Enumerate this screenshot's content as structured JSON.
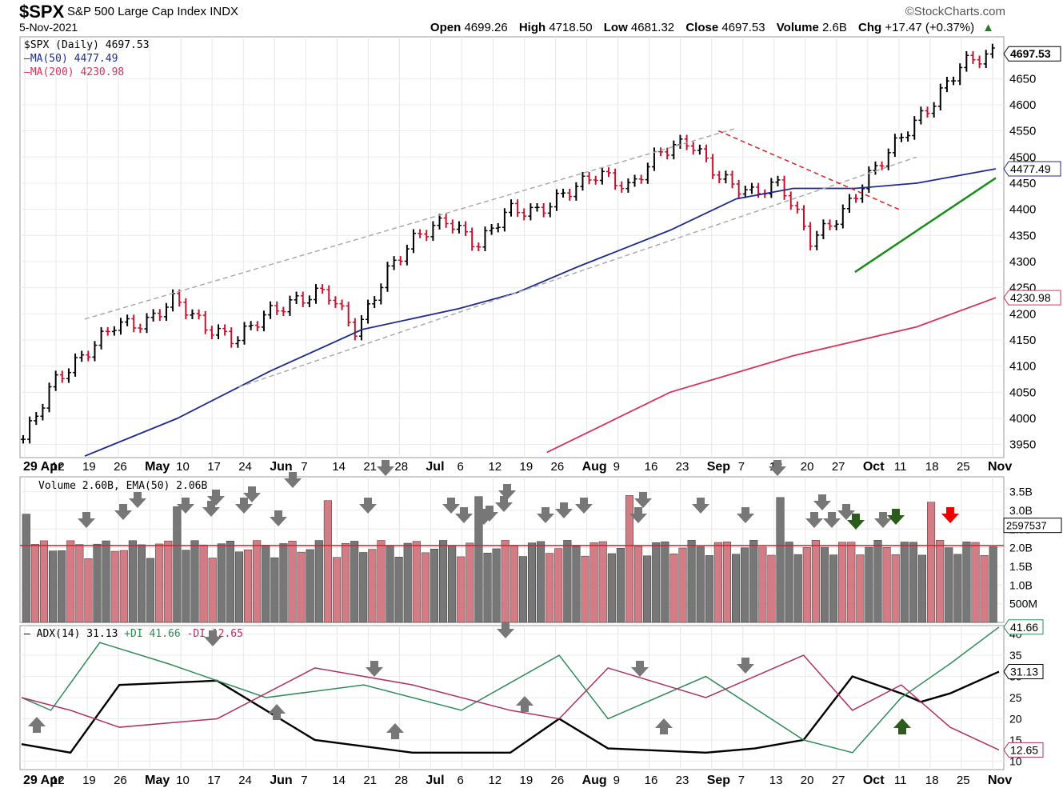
{
  "header": {
    "symbol": "$SPX",
    "name": "S&P 500 Large Cap Index",
    "exchange": "INDX",
    "date": "5-Nov-2021",
    "source": "©StockCharts.com",
    "open_label": "Open",
    "open": "4699.26",
    "high_label": "High",
    "high": "4718.50",
    "low_label": "Low",
    "low": "4681.32",
    "close_label": "Close",
    "close": "4697.53",
    "volume_label": "Volume",
    "volume": "2.6B",
    "chg_label": "Chg",
    "chg": "+17.47 (+0.37%)"
  },
  "colors": {
    "up": "#000000",
    "down": "#c8102e",
    "ma50": "#1f2a8f",
    "ma200": "#d6335a",
    "adx": "#000000",
    "plus_di": "#2e8b57",
    "minus_di": "#b03060",
    "vol_up": "#777777",
    "vol_down": "#d47c85",
    "green_line": "#1a8c1a"
  },
  "legend": {
    "price": "$SPX (Daily) 4697.53",
    "ma50": "MA(50) 4477.49",
    "ma200": "MA(200) 4230.98",
    "volume": "Volume 2.60B, EMA(50) 2.06B",
    "adx": "ADX(14) 31.13",
    "plus_di": "+DI 41.66",
    "minus_di": "-DI 12.65"
  },
  "price_tags": {
    "last": "4697.53",
    "ma50": "4477.49",
    "ma200": "4230.98"
  },
  "volume_tag": "2597537",
  "adx_tags": {
    "plus_di": "41.66",
    "adx": "31.13",
    "minus_di": "12.65"
  },
  "x_labels": [
    "29 Apr",
    "12",
    "19",
    "26",
    "May",
    "10",
    "17",
    "24",
    "Jun",
    "7",
    "14",
    "21",
    "28",
    "Jul",
    "6",
    "12",
    "19",
    "26",
    "Aug",
    "9",
    "16",
    "23",
    "Sep",
    "7",
    "13",
    "20",
    "27",
    "Oct",
    "11",
    "18",
    "25",
    "Nov"
  ],
  "chart_data": [
    {
      "type": "ohlc",
      "title": "$SPX (Daily)",
      "y_ticks": [
        3950,
        4000,
        4050,
        4100,
        4150,
        4200,
        4250,
        4300,
        4350,
        4400,
        4450,
        4500,
        4550,
        4600,
        4650
      ],
      "ylim": [
        3925,
        4730
      ],
      "series": [
        {
          "name": "$SPX (Daily)",
          "x": [
            "2021-03-29",
            "2021-04-05",
            "2021-04-12",
            "2021-04-19",
            "2021-04-26",
            "2021-05-03",
            "2021-05-10",
            "2021-05-17",
            "2021-05-24",
            "2021-06-01",
            "2021-06-07",
            "2021-06-14",
            "2021-06-21",
            "2021-06-28",
            "2021-07-06",
            "2021-07-12",
            "2021-07-19",
            "2021-07-26",
            "2021-08-02",
            "2021-08-09",
            "2021-08-16",
            "2021-08-23",
            "2021-08-30",
            "2021-09-07",
            "2021-09-13",
            "2021-09-20",
            "2021-09-27",
            "2021-10-04",
            "2021-10-11",
            "2021-10-18",
            "2021-10-25",
            "2021-11-01",
            "2021-11-05"
          ],
          "close": [
            3960,
            4070,
            4120,
            4180,
            4180,
            4230,
            4175,
            4150,
            4200,
            4225,
            4245,
            4165,
            4280,
            4350,
            4380,
            4330,
            4400,
            4395,
            4435,
            4470,
            4440,
            4510,
            4530,
            4460,
            4430,
            4450,
            4340,
            4390,
            4470,
            4540,
            4600,
            4680,
            4697.53
          ]
        },
        {
          "name": "MA(50)",
          "x": [
            "2021-04-12",
            "2021-05-03",
            "2021-05-24",
            "2021-06-14",
            "2021-07-06",
            "2021-07-19",
            "2021-08-02",
            "2021-08-23",
            "2021-09-07",
            "2021-09-20",
            "2021-10-04",
            "2021-10-18",
            "2021-11-05"
          ],
          "values": [
            3928,
            4000,
            4090,
            4170,
            4210,
            4240,
            4290,
            4360,
            4420,
            4440,
            4440,
            4450,
            4477.49
          ]
        },
        {
          "name": "MA(200)",
          "x": [
            "2021-07-26",
            "2021-08-23",
            "2021-09-20",
            "2021-10-18",
            "2021-11-05"
          ],
          "values": [
            3935,
            4050,
            4120,
            4175,
            4230.98
          ]
        }
      ],
      "annotations": [
        {
          "type": "trendline",
          "color": "gray",
          "dashed": true,
          "from": [
            "2021-04-12",
            4190
          ],
          "to": [
            "2021-09-07",
            4555
          ]
        },
        {
          "type": "trendline",
          "color": "gray",
          "dashed": true,
          "from": [
            "2021-05-17",
            4060
          ],
          "to": [
            "2021-10-18",
            4500
          ]
        },
        {
          "type": "trendline",
          "color": "red",
          "dashed": true,
          "from": [
            "2021-09-03",
            4550
          ],
          "to": [
            "2021-10-14",
            4400
          ]
        },
        {
          "type": "trendline",
          "color": "green",
          "dashed": false,
          "from": [
            "2021-10-04",
            4280
          ],
          "to": [
            "2021-11-05",
            4460
          ]
        }
      ]
    },
    {
      "type": "bar",
      "title": "Volume",
      "y_ticks": [
        "500M",
        "1.0B",
        "1.5B",
        "2.0B",
        "2.5B",
        "3.0B",
        "3.5B"
      ],
      "tick_values": [
        0.5,
        1.0,
        1.5,
        2.0,
        2.5,
        3.0,
        3.5
      ],
      "ylim": [
        0,
        3.9
      ],
      "ema50": 2.06,
      "last_volume": 2.6
    },
    {
      "type": "line",
      "title": "ADX(14)",
      "y_ticks": [
        10,
        15,
        20,
        25,
        30,
        35,
        40
      ],
      "ylim": [
        8,
        42
      ],
      "series": [
        {
          "name": "ADX(14)",
          "x": [
            0,
            0.05,
            0.1,
            0.2,
            0.3,
            0.4,
            0.5,
            0.55,
            0.6,
            0.7,
            0.75,
            0.8,
            0.85,
            0.9,
            0.92,
            0.95,
            1.0
          ],
          "values": [
            14,
            12,
            28,
            29,
            15,
            12,
            12,
            20,
            13,
            12,
            13,
            15,
            30,
            26,
            24,
            26,
            31.13
          ]
        },
        {
          "name": "+DI",
          "x": [
            0,
            0.03,
            0.08,
            0.15,
            0.25,
            0.35,
            0.45,
            0.55,
            0.6,
            0.7,
            0.8,
            0.85,
            0.9,
            0.95,
            1.0
          ],
          "values": [
            25,
            22,
            38,
            33,
            25,
            28,
            22,
            35,
            20,
            30,
            15,
            12,
            25,
            33,
            41.66
          ]
        },
        {
          "name": "-DI",
          "x": [
            0,
            0.05,
            0.1,
            0.2,
            0.3,
            0.4,
            0.5,
            0.55,
            0.6,
            0.7,
            0.8,
            0.85,
            0.9,
            0.95,
            1.0
          ],
          "values": [
            25,
            22,
            18,
            20,
            32,
            28,
            22,
            20,
            32,
            25,
            35,
            22,
            28,
            18,
            12.65
          ]
        }
      ]
    }
  ]
}
